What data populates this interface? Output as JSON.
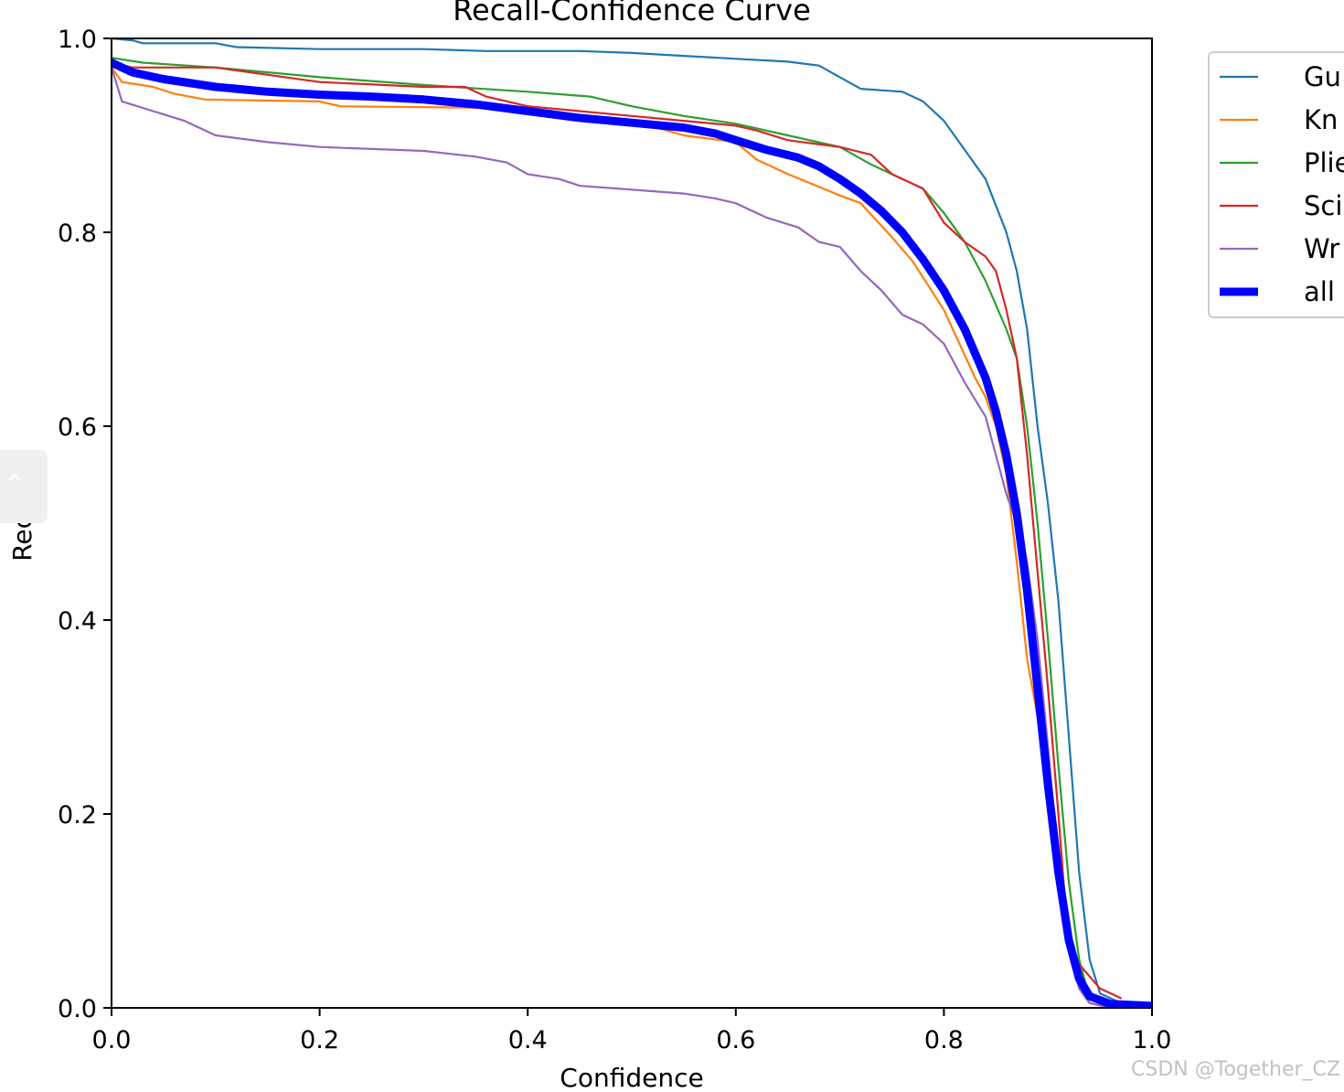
{
  "chart_data": {
    "type": "line",
    "title": "Recall-Confidence Curve",
    "xlabel": "Confidence",
    "ylabel": "Recall",
    "xlim": [
      0,
      1
    ],
    "ylim": [
      0,
      1
    ],
    "xticks": [
      "0.0",
      "0.2",
      "0.4",
      "0.6",
      "0.8",
      "1.0"
    ],
    "yticks": [
      "0.0",
      "0.2",
      "0.4",
      "0.6",
      "0.8",
      "1.0"
    ],
    "grid": false,
    "legend": "outside-right",
    "series": [
      {
        "name": "Gu",
        "color": "#1f77b4",
        "points": [
          [
            0,
            1.0
          ],
          [
            0.02,
            0.998
          ],
          [
            0.03,
            0.995
          ],
          [
            0.1,
            0.995
          ],
          [
            0.12,
            0.991
          ],
          [
            0.2,
            0.989
          ],
          [
            0.3,
            0.989
          ],
          [
            0.36,
            0.987
          ],
          [
            0.45,
            0.987
          ],
          [
            0.5,
            0.985
          ],
          [
            0.55,
            0.982
          ],
          [
            0.6,
            0.979
          ],
          [
            0.65,
            0.976
          ],
          [
            0.68,
            0.972
          ],
          [
            0.7,
            0.96
          ],
          [
            0.72,
            0.948
          ],
          [
            0.76,
            0.945
          ],
          [
            0.78,
            0.935
          ],
          [
            0.8,
            0.915
          ],
          [
            0.82,
            0.885
          ],
          [
            0.84,
            0.855
          ],
          [
            0.86,
            0.8
          ],
          [
            0.87,
            0.76
          ],
          [
            0.88,
            0.7
          ],
          [
            0.89,
            0.6
          ],
          [
            0.9,
            0.52
          ],
          [
            0.91,
            0.42
          ],
          [
            0.92,
            0.28
          ],
          [
            0.93,
            0.14
          ],
          [
            0.94,
            0.05
          ],
          [
            0.95,
            0.015
          ],
          [
            0.97,
            0.005
          ],
          [
            1.0,
            0.002
          ]
        ]
      },
      {
        "name": "Kn",
        "color": "#ff7f0e",
        "points": [
          [
            0,
            0.97
          ],
          [
            0.01,
            0.955
          ],
          [
            0.04,
            0.95
          ],
          [
            0.06,
            0.943
          ],
          [
            0.09,
            0.937
          ],
          [
            0.2,
            0.935
          ],
          [
            0.22,
            0.93
          ],
          [
            0.4,
            0.928
          ],
          [
            0.42,
            0.92
          ],
          [
            0.5,
            0.915
          ],
          [
            0.55,
            0.9
          ],
          [
            0.6,
            0.893
          ],
          [
            0.62,
            0.875
          ],
          [
            0.65,
            0.86
          ],
          [
            0.7,
            0.838
          ],
          [
            0.72,
            0.83
          ],
          [
            0.75,
            0.795
          ],
          [
            0.77,
            0.77
          ],
          [
            0.8,
            0.72
          ],
          [
            0.83,
            0.65
          ],
          [
            0.84,
            0.63
          ],
          [
            0.85,
            0.6
          ],
          [
            0.86,
            0.55
          ],
          [
            0.87,
            0.46
          ],
          [
            0.88,
            0.36
          ],
          [
            0.9,
            0.24
          ],
          [
            0.91,
            0.14
          ],
          [
            0.92,
            0.07
          ],
          [
            0.93,
            0.02
          ],
          [
            0.94,
            0.005
          ],
          [
            0.96,
            0.0
          ]
        ]
      },
      {
        "name": "Plie",
        "color": "#2ca02c",
        "points": [
          [
            0,
            0.98
          ],
          [
            0.03,
            0.975
          ],
          [
            0.1,
            0.97
          ],
          [
            0.2,
            0.96
          ],
          [
            0.3,
            0.952
          ],
          [
            0.4,
            0.945
          ],
          [
            0.46,
            0.94
          ],
          [
            0.5,
            0.93
          ],
          [
            0.55,
            0.92
          ],
          [
            0.6,
            0.912
          ],
          [
            0.65,
            0.9
          ],
          [
            0.7,
            0.888
          ],
          [
            0.73,
            0.87
          ],
          [
            0.76,
            0.855
          ],
          [
            0.78,
            0.845
          ],
          [
            0.8,
            0.82
          ],
          [
            0.82,
            0.79
          ],
          [
            0.84,
            0.75
          ],
          [
            0.86,
            0.7
          ],
          [
            0.87,
            0.67
          ],
          [
            0.88,
            0.6
          ],
          [
            0.89,
            0.5
          ],
          [
            0.9,
            0.38
          ],
          [
            0.91,
            0.25
          ],
          [
            0.92,
            0.13
          ],
          [
            0.93,
            0.05
          ],
          [
            0.94,
            0.01
          ],
          [
            0.96,
            0.0
          ]
        ]
      },
      {
        "name": "Sci",
        "color": "#d62728",
        "points": [
          [
            0,
            0.975
          ],
          [
            0.02,
            0.97
          ],
          [
            0.1,
            0.97
          ],
          [
            0.2,
            0.955
          ],
          [
            0.3,
            0.95
          ],
          [
            0.34,
            0.95
          ],
          [
            0.36,
            0.94
          ],
          [
            0.4,
            0.93
          ],
          [
            0.45,
            0.925
          ],
          [
            0.5,
            0.92
          ],
          [
            0.55,
            0.915
          ],
          [
            0.6,
            0.91
          ],
          [
            0.62,
            0.905
          ],
          [
            0.65,
            0.895
          ],
          [
            0.7,
            0.888
          ],
          [
            0.73,
            0.88
          ],
          [
            0.75,
            0.86
          ],
          [
            0.78,
            0.845
          ],
          [
            0.8,
            0.81
          ],
          [
            0.82,
            0.79
          ],
          [
            0.84,
            0.775
          ],
          [
            0.85,
            0.76
          ],
          [
            0.86,
            0.72
          ],
          [
            0.87,
            0.67
          ],
          [
            0.88,
            0.57
          ],
          [
            0.89,
            0.45
          ],
          [
            0.9,
            0.33
          ],
          [
            0.91,
            0.2
          ],
          [
            0.92,
            0.06
          ],
          [
            0.93,
            0.045
          ],
          [
            0.95,
            0.02
          ],
          [
            0.97,
            0.01
          ]
        ]
      },
      {
        "name": "Wr",
        "color": "#9467bd",
        "points": [
          [
            0,
            0.97
          ],
          [
            0.01,
            0.935
          ],
          [
            0.04,
            0.925
          ],
          [
            0.07,
            0.915
          ],
          [
            0.1,
            0.9
          ],
          [
            0.15,
            0.893
          ],
          [
            0.2,
            0.888
          ],
          [
            0.3,
            0.884
          ],
          [
            0.35,
            0.878
          ],
          [
            0.38,
            0.872
          ],
          [
            0.4,
            0.86
          ],
          [
            0.43,
            0.855
          ],
          [
            0.45,
            0.848
          ],
          [
            0.55,
            0.84
          ],
          [
            0.58,
            0.835
          ],
          [
            0.6,
            0.83
          ],
          [
            0.63,
            0.815
          ],
          [
            0.66,
            0.805
          ],
          [
            0.68,
            0.79
          ],
          [
            0.7,
            0.785
          ],
          [
            0.72,
            0.76
          ],
          [
            0.74,
            0.74
          ],
          [
            0.76,
            0.715
          ],
          [
            0.78,
            0.705
          ],
          [
            0.8,
            0.685
          ],
          [
            0.82,
            0.645
          ],
          [
            0.84,
            0.61
          ],
          [
            0.85,
            0.57
          ],
          [
            0.86,
            0.53
          ],
          [
            0.87,
            0.5
          ],
          [
            0.88,
            0.46
          ],
          [
            0.89,
            0.38
          ],
          [
            0.9,
            0.27
          ],
          [
            0.91,
            0.15
          ],
          [
            0.92,
            0.06
          ],
          [
            0.93,
            0.02
          ],
          [
            0.94,
            0.005
          ],
          [
            0.96,
            0.0
          ]
        ]
      },
      {
        "name": "all",
        "color": "#0000ff",
        "thick": true,
        "points": [
          [
            0,
            0.975
          ],
          [
            0.02,
            0.965
          ],
          [
            0.05,
            0.958
          ],
          [
            0.1,
            0.95
          ],
          [
            0.15,
            0.945
          ],
          [
            0.2,
            0.942
          ],
          [
            0.25,
            0.94
          ],
          [
            0.3,
            0.937
          ],
          [
            0.35,
            0.932
          ],
          [
            0.4,
            0.925
          ],
          [
            0.45,
            0.918
          ],
          [
            0.5,
            0.913
          ],
          [
            0.55,
            0.908
          ],
          [
            0.58,
            0.902
          ],
          [
            0.6,
            0.895
          ],
          [
            0.63,
            0.885
          ],
          [
            0.66,
            0.877
          ],
          [
            0.68,
            0.868
          ],
          [
            0.7,
            0.855
          ],
          [
            0.72,
            0.84
          ],
          [
            0.74,
            0.822
          ],
          [
            0.76,
            0.8
          ],
          [
            0.78,
            0.772
          ],
          [
            0.8,
            0.74
          ],
          [
            0.82,
            0.7
          ],
          [
            0.84,
            0.65
          ],
          [
            0.85,
            0.615
          ],
          [
            0.86,
            0.57
          ],
          [
            0.87,
            0.51
          ],
          [
            0.88,
            0.43
          ],
          [
            0.89,
            0.33
          ],
          [
            0.9,
            0.23
          ],
          [
            0.91,
            0.14
          ],
          [
            0.92,
            0.07
          ],
          [
            0.93,
            0.03
          ],
          [
            0.94,
            0.012
          ],
          [
            0.96,
            0.004
          ],
          [
            1.0,
            0.002
          ]
        ]
      }
    ]
  },
  "watermark": "CSDN @Together_CZ"
}
